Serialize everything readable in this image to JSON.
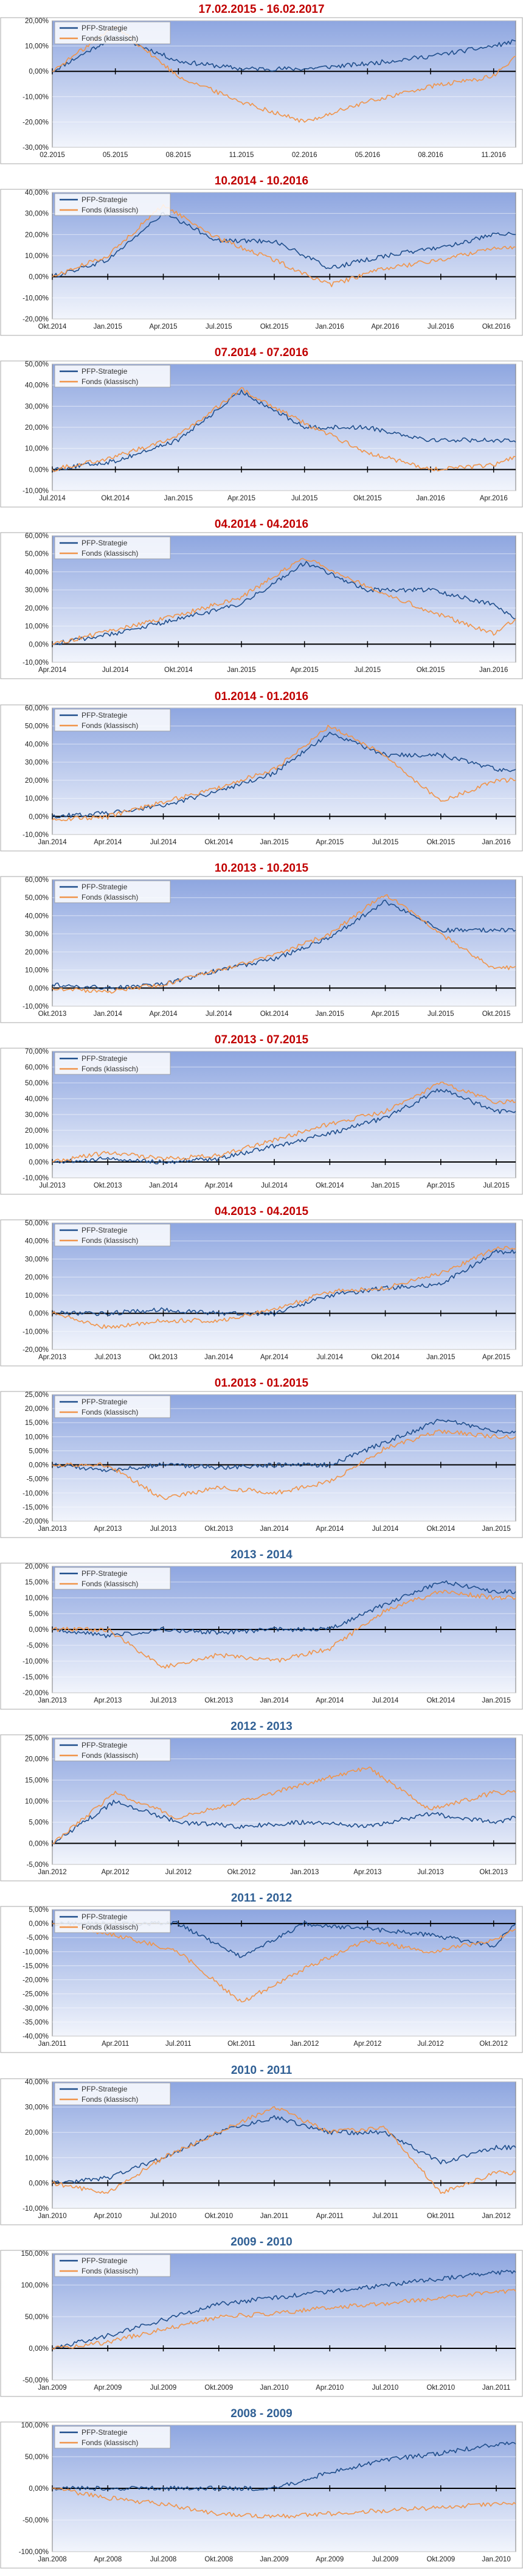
{
  "legend": {
    "series_a": "PFP-Strategie",
    "series_b": "Fonds (klassisch)"
  },
  "colors": {
    "series_a": "#1f4e8c",
    "series_b": "#f0944a",
    "title_red": "#c00000",
    "title_blue": "#2f5f94"
  },
  "chart_data": [
    {
      "type": "line",
      "title": "17.02.2015 - 16.02.2017",
      "title_color": "red",
      "categories": [
        "02.2015",
        "05.2015",
        "08.2015",
        "11.2015",
        "02.2016",
        "05.2016",
        "08.2016",
        "11.2016"
      ],
      "ylim": [
        -30,
        20
      ],
      "yticks": [
        -30,
        -20,
        -10,
        0,
        10,
        20
      ],
      "grid": true,
      "legend_position": "top-left",
      "series": [
        {
          "name": "PFP-Strategie",
          "values": [
            0,
            14,
            4,
            1,
            1,
            3,
            6,
            10
          ],
          "end": 12
        },
        {
          "name": "Fonds (klassisch)",
          "values": [
            0,
            18,
            -2,
            -12,
            -20,
            -12,
            -6,
            -2
          ],
          "end": 6
        }
      ]
    },
    {
      "type": "line",
      "title": "10.2014 - 10.2016",
      "title_color": "red",
      "categories": [
        "Okt.2014",
        "Jan.2015",
        "Apr.2015",
        "Jul.2015",
        "Okt.2015",
        "Jan.2016",
        "Apr.2016",
        "Jul.2016",
        "Okt.2016"
      ],
      "ylim": [
        -20,
        40
      ],
      "yticks": [
        -20,
        -10,
        0,
        10,
        20,
        30,
        40
      ],
      "grid": true,
      "legend_position": "top-left",
      "series": [
        {
          "name": "PFP-Strategie",
          "values": [
            0,
            8,
            30,
            17,
            17,
            4,
            10,
            14,
            20
          ],
          "end": 20
        },
        {
          "name": "Fonds (klassisch)",
          "values": [
            0,
            10,
            34,
            18,
            8,
            -4,
            4,
            8,
            14
          ],
          "end": 14
        }
      ]
    },
    {
      "type": "line",
      "title": "07.2014 - 07.2016",
      "title_color": "red",
      "categories": [
        "Jul.2014",
        "Okt.2014",
        "Jan.2015",
        "Apr.2015",
        "Jul.2015",
        "Okt.2015",
        "Jan.2016",
        "Apr.2016"
      ],
      "ylim": [
        -10,
        50
      ],
      "yticks": [
        -10,
        0,
        10,
        20,
        30,
        40,
        50
      ],
      "grid": true,
      "legend_position": "top-left",
      "series": [
        {
          "name": "PFP-Strategie",
          "values": [
            0,
            4,
            14,
            37,
            20,
            20,
            14,
            14
          ],
          "end": 13
        },
        {
          "name": "Fonds (klassisch)",
          "values": [
            0,
            6,
            16,
            38,
            22,
            8,
            0,
            2
          ],
          "end": 6
        }
      ]
    },
    {
      "type": "line",
      "title": "04.2014 - 04.2016",
      "title_color": "red",
      "categories": [
        "Apr.2014",
        "Jul.2014",
        "Okt.2014",
        "Jan.2015",
        "Apr.2015",
        "Jul.2015",
        "Okt.2015",
        "Jan.2016"
      ],
      "ylim": [
        -10,
        60
      ],
      "yticks": [
        -10,
        0,
        10,
        20,
        30,
        40,
        50,
        60
      ],
      "grid": true,
      "legend_position": "top-left",
      "series": [
        {
          "name": "PFP-Strategie",
          "values": [
            0,
            6,
            14,
            22,
            45,
            30,
            30,
            22
          ],
          "end": 14
        },
        {
          "name": "Fonds (klassisch)",
          "values": [
            0,
            8,
            16,
            26,
            48,
            32,
            18,
            6
          ],
          "end": 14
        }
      ]
    },
    {
      "type": "line",
      "title": "01.2014 - 01.2016",
      "title_color": "red",
      "categories": [
        "Jan.2014",
        "Apr.2014",
        "Jul.2014",
        "Okt.2014",
        "Jan.2015",
        "Apr.2015",
        "Jul.2015",
        "Okt.2015",
        "Jan.2016"
      ],
      "ylim": [
        -10,
        60
      ],
      "yticks": [
        -10,
        0,
        10,
        20,
        30,
        40,
        50,
        60
      ],
      "grid": true,
      "legend_position": "top-left",
      "series": [
        {
          "name": "PFP-Strategie",
          "values": [
            0,
            2,
            6,
            14,
            24,
            46,
            34,
            34,
            26
          ],
          "end": 26
        },
        {
          "name": "Fonds (klassisch)",
          "values": [
            -2,
            0,
            8,
            16,
            26,
            50,
            34,
            8,
            20
          ],
          "end": 20
        }
      ]
    },
    {
      "type": "line",
      "title": "10.2013 - 10.2015",
      "title_color": "red",
      "categories": [
        "Okt.2013",
        "Jan.2014",
        "Apr.2014",
        "Jul.2014",
        "Okt.2014",
        "Jan.2015",
        "Apr.2015",
        "Jul.2015",
        "Okt.2015"
      ],
      "ylim": [
        -10,
        60
      ],
      "yticks": [
        -10,
        0,
        10,
        20,
        30,
        40,
        50,
        60
      ],
      "grid": true,
      "legend_position": "top-left",
      "series": [
        {
          "name": "PFP-Strategie",
          "values": [
            2,
            0,
            2,
            10,
            16,
            28,
            48,
            32,
            32
          ],
          "end": 32
        },
        {
          "name": "Fonds (klassisch)",
          "values": [
            0,
            -2,
            2,
            10,
            18,
            30,
            52,
            30,
            10
          ],
          "end": 12
        }
      ]
    },
    {
      "type": "line",
      "title": "07.2013 - 07.2015",
      "title_color": "red",
      "categories": [
        "Jul.2013",
        "Okt.2013",
        "Jan.2014",
        "Apr.2014",
        "Jul.2014",
        "Okt.2014",
        "Jan.2015",
        "Apr.2015",
        "Jul.2015"
      ],
      "ylim": [
        -10,
        70
      ],
      "yticks": [
        -10,
        0,
        10,
        20,
        30,
        40,
        50,
        60,
        70
      ],
      "grid": true,
      "legend_position": "top-left",
      "series": [
        {
          "name": "PFP-Strategie",
          "values": [
            0,
            2,
            0,
            2,
            10,
            18,
            28,
            46,
            32
          ],
          "end": 32
        },
        {
          "name": "Fonds (klassisch)",
          "values": [
            0,
            6,
            2,
            4,
            14,
            24,
            32,
            50,
            38
          ],
          "end": 38
        }
      ]
    },
    {
      "type": "line",
      "title": "04.2013 - 04.2015",
      "title_color": "red",
      "categories": [
        "Apr.2013",
        "Jul.2013",
        "Okt.2013",
        "Jan.2014",
        "Apr.2014",
        "Jul.2014",
        "Okt.2014",
        "Jan.2015",
        "Apr.2015"
      ],
      "ylim": [
        -20,
        50
      ],
      "yticks": [
        -20,
        -10,
        0,
        10,
        20,
        30,
        40,
        50
      ],
      "grid": true,
      "legend_position": "top-left",
      "series": [
        {
          "name": "PFP-Strategie",
          "values": [
            0,
            0,
            2,
            0,
            0,
            10,
            14,
            16,
            34
          ],
          "end": 34
        },
        {
          "name": "Fonds (klassisch)",
          "values": [
            0,
            -8,
            -4,
            -4,
            2,
            12,
            14,
            22,
            36
          ],
          "end": 36
        }
      ]
    },
    {
      "type": "line",
      "title": "01.2013 - 01.2015",
      "title_color": "red",
      "categories": [
        "Jan.2013",
        "Apr.2013",
        "Jul.2013",
        "Okt.2013",
        "Jan.2014",
        "Apr.2014",
        "Jul.2014",
        "Okt.2014",
        "Jan.2015"
      ],
      "ylim": [
        -20,
        25
      ],
      "yticks": [
        -20,
        -15,
        -10,
        -5,
        0,
        5,
        10,
        15,
        20,
        25
      ],
      "grid": true,
      "legend_position": "top-left",
      "series": [
        {
          "name": "PFP-Strategie",
          "values": [
            0,
            -2,
            0,
            -1,
            0,
            0,
            8,
            16,
            12
          ],
          "end": 12
        },
        {
          "name": "Fonds (klassisch)",
          "values": [
            0,
            0,
            -12,
            -8,
            -10,
            -6,
            6,
            12,
            10
          ],
          "end": 10
        }
      ]
    },
    {
      "type": "line",
      "title": "2013 - 2014",
      "title_color": "blue",
      "categories": [
        "Jan.2013",
        "Apr.2013",
        "Jul.2013",
        "Okt.2013",
        "Jan.2014",
        "Apr.2014",
        "Jul.2014",
        "Okt.2014",
        "Jan.2015"
      ],
      "ylim": [
        -20,
        20
      ],
      "yticks": [
        -20,
        -15,
        -10,
        -5,
        0,
        5,
        10,
        15,
        20
      ],
      "grid": true,
      "legend_position": "top-left",
      "series": [
        {
          "name": "PFP-Strategie",
          "values": [
            0,
            -2,
            0,
            -1,
            0,
            0,
            8,
            15,
            12
          ],
          "end": 12
        },
        {
          "name": "Fonds (klassisch)",
          "values": [
            0,
            0,
            -12,
            -8,
            -10,
            -6,
            6,
            12,
            10
          ],
          "end": 10
        }
      ]
    },
    {
      "type": "line",
      "title": "2012 - 2013",
      "title_color": "blue",
      "categories": [
        "Jan.2012",
        "Apr.2012",
        "Jul.2012",
        "Okt.2012",
        "Jan.2013",
        "Apr.2013",
        "Jul.2013",
        "Okt.2013"
      ],
      "ylim": [
        -5,
        25
      ],
      "yticks": [
        -5,
        0,
        5,
        10,
        15,
        20,
        25
      ],
      "grid": true,
      "legend_position": "top-left",
      "series": [
        {
          "name": "PFP-Strategie",
          "values": [
            0,
            10,
            5,
            4,
            5,
            4,
            7,
            5
          ],
          "end": 6
        },
        {
          "name": "Fonds (klassisch)",
          "values": [
            0,
            12,
            6,
            10,
            14,
            18,
            8,
            12
          ],
          "end": 12
        }
      ]
    },
    {
      "type": "line",
      "title": "2011 - 2012",
      "title_color": "blue",
      "categories": [
        "Jan.2011",
        "Apr.2011",
        "Jul.2011",
        "Okt.2011",
        "Jan.2012",
        "Apr.2012",
        "Jul.2012",
        "Okt.2012"
      ],
      "ylim": [
        -40,
        5
      ],
      "yticks": [
        -40,
        -35,
        -30,
        -25,
        -20,
        -15,
        -10,
        -5,
        0,
        5
      ],
      "grid": true,
      "legend_position": "top-left",
      "series": [
        {
          "name": "PFP-Strategie",
          "values": [
            0,
            0,
            0,
            -12,
            0,
            -2,
            -4,
            -8
          ],
          "end": 0
        },
        {
          "name": "Fonds (klassisch)",
          "values": [
            0,
            -4,
            -10,
            -28,
            -16,
            -6,
            -10,
            -6
          ],
          "end": -2
        }
      ]
    },
    {
      "type": "line",
      "title": "2010 - 2011",
      "title_color": "blue",
      "categories": [
        "Jan.2010",
        "Apr.2010",
        "Jul.2010",
        "Okt.2010",
        "Jan.2011",
        "Apr.2011",
        "Jul.2011",
        "Okt.2011",
        "Jan.2012"
      ],
      "ylim": [
        -10,
        40
      ],
      "yticks": [
        -10,
        0,
        10,
        20,
        30,
        40
      ],
      "grid": true,
      "legend_position": "top-left",
      "series": [
        {
          "name": "PFP-Strategie",
          "values": [
            0,
            2,
            10,
            20,
            26,
            20,
            20,
            8,
            14
          ],
          "end": 14
        },
        {
          "name": "Fonds (klassisch)",
          "values": [
            0,
            -4,
            10,
            20,
            30,
            20,
            22,
            -4,
            4
          ],
          "end": 4
        }
      ]
    },
    {
      "type": "line",
      "title": "2009 - 2010",
      "title_color": "blue",
      "categories": [
        "Jan.2009",
        "Apr.2009",
        "Jul.2009",
        "Okt.2009",
        "Jan.2010",
        "Apr.2010",
        "Jul.2010",
        "Okt.2010",
        "Jan.2011"
      ],
      "ylim": [
        -50,
        150
      ],
      "yticks": [
        -50,
        0,
        50,
        100,
        150
      ],
      "grid": true,
      "legend_position": "top-left",
      "series": [
        {
          "name": "PFP-Strategie",
          "values": [
            0,
            20,
            45,
            70,
            80,
            90,
            100,
            110,
            120
          ],
          "end": 120
        },
        {
          "name": "Fonds (klassisch)",
          "values": [
            0,
            10,
            30,
            50,
            55,
            65,
            70,
            80,
            90
          ],
          "end": 90
        }
      ]
    },
    {
      "type": "line",
      "title": "2008 - 2009",
      "title_color": "blue",
      "categories": [
        "Jan.2008",
        "Apr.2008",
        "Jul.2008",
        "Okt.2008",
        "Jan.2009",
        "Apr.2009",
        "Jul.2009",
        "Okt.2009",
        "Jan.2010"
      ],
      "ylim": [
        -100,
        100
      ],
      "yticks": [
        -100,
        -50,
        0,
        50,
        100
      ],
      "grid": true,
      "legend_position": "top-left",
      "series": [
        {
          "name": "PFP-Strategie",
          "values": [
            0,
            0,
            0,
            0,
            0,
            25,
            45,
            55,
            70
          ],
          "end": 70
        },
        {
          "name": "Fonds (klassisch)",
          "values": [
            0,
            -15,
            -25,
            -40,
            -45,
            -40,
            -35,
            -30,
            -25
          ],
          "end": -25
        }
      ]
    }
  ]
}
